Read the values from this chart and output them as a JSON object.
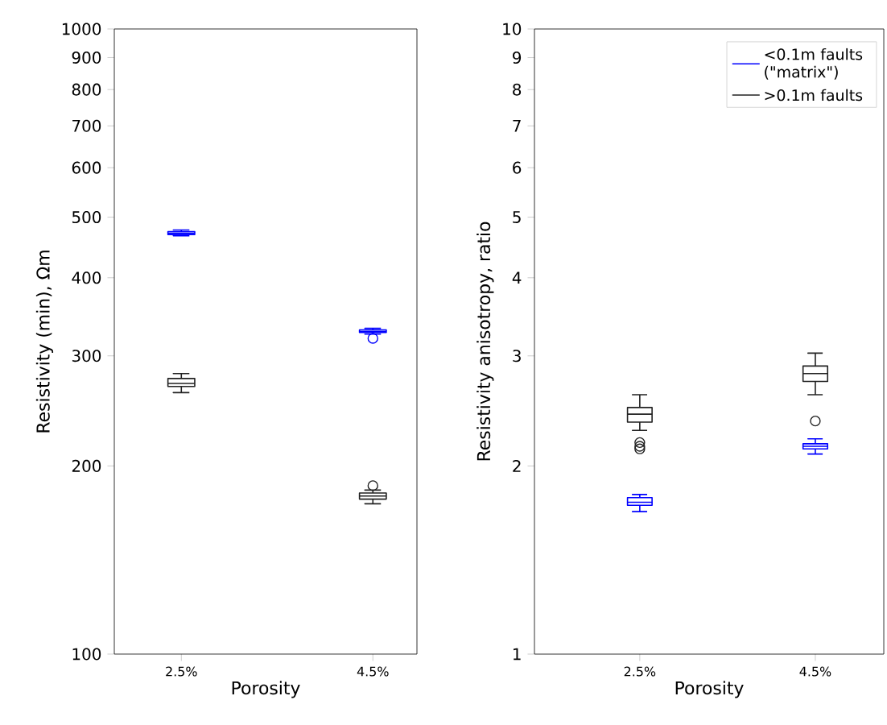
{
  "chart_data": [
    {
      "type": "box",
      "categories": [
        "2.5%",
        "4.5%"
      ],
      "xlabel": "Porosity",
      "ylabel": "Resistivity (min), Ωm",
      "log": "y",
      "ylim": [
        100,
        1000
      ],
      "yticks": [
        100,
        200,
        300,
        400,
        500,
        600,
        700,
        800,
        900,
        1000
      ],
      "series": [
        {
          "color": "#0000ff",
          "boxes": [
            {
              "low": 467,
              "q1": 469,
              "median": 471,
              "q3": 474,
              "high": 477
            },
            {
              "low": 325,
              "q1": 327,
              "median": 328,
              "q3": 330,
              "high": 332,
              "outliers": [
                320
              ]
            }
          ]
        },
        {
          "color": "#222222",
          "boxes": [
            {
              "low": 262,
              "q1": 268,
              "median": 271,
              "q3": 276,
              "high": 281
            },
            {
              "low": 174,
              "q1": 177,
              "median": 179,
              "q3": 181,
              "high": 183,
              "outliers": [
                186
              ]
            }
          ]
        }
      ]
    },
    {
      "type": "box",
      "categories": [
        "2.5%",
        "4.5%"
      ],
      "xlabel": "Porosity",
      "ylabel": "Resistivity anisotropy, ratio",
      "log": "y",
      "ylim": [
        1,
        10
      ],
      "yticks": [
        1,
        2,
        3,
        4,
        5,
        6,
        7,
        8,
        9,
        10
      ],
      "legend": "top right",
      "series": [
        {
          "name": "<0.1m faults (\"matrix\")",
          "color": "#0000ff",
          "boxes": [
            {
              "low": 1.69,
              "q1": 1.73,
              "median": 1.75,
              "q3": 1.78,
              "high": 1.8
            },
            {
              "low": 2.09,
              "q1": 2.13,
              "median": 2.15,
              "q3": 2.17,
              "high": 2.21
            }
          ]
        },
        {
          "name": ">0.1m faults",
          "color": "#222222",
          "boxes": [
            {
              "low": 2.28,
              "q1": 2.35,
              "median": 2.42,
              "q3": 2.48,
              "high": 2.6,
              "outliers": [
                2.13,
                2.15,
                2.18
              ]
            },
            {
              "low": 2.6,
              "q1": 2.73,
              "median": 2.81,
              "q3": 2.89,
              "high": 3.03,
              "outliers": [
                2.36
              ]
            }
          ]
        }
      ]
    }
  ]
}
